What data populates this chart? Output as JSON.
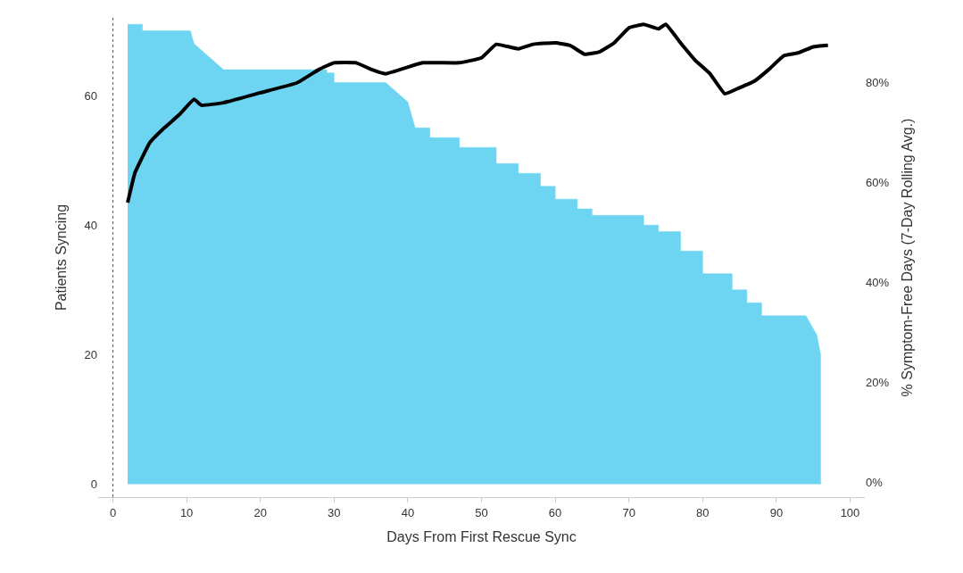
{
  "chart_data": {
    "type": "area",
    "xlabel": "Days From First Rescue Sync",
    "ylabel": "Patients Syncing",
    "y2label": "% Symptom-Free Days (7-Day Rolling Avg.)",
    "xlim": [
      -2,
      102
    ],
    "xticks": [
      0,
      10,
      20,
      30,
      40,
      50,
      60,
      70,
      80,
      90,
      100
    ],
    "ylim": [
      -2,
      72
    ],
    "yticks": [
      0,
      20,
      40,
      60
    ],
    "y2lim": [
      -3,
      93
    ],
    "y2ticks": [
      {
        "value": 0,
        "label": "0%"
      },
      {
        "value": 20,
        "label": "20%"
      },
      {
        "value": 40,
        "label": "40%"
      },
      {
        "value": 60,
        "label": "60%"
      },
      {
        "value": 80,
        "label": "80%"
      }
    ],
    "ref_lines": [
      {
        "axis": "x",
        "value": 0,
        "color": "#555555",
        "line_style": "dotted"
      }
    ],
    "series": [
      {
        "color": "#6dd5f2",
        "x": [
          2,
          4,
          4,
          10.5,
          11,
          13,
          15,
          29,
          29,
          30,
          30,
          37,
          38,
          40,
          41,
          43,
          43,
          47,
          47,
          52,
          52,
          55,
          55,
          58,
          58,
          60,
          60,
          63,
          63,
          65,
          65,
          72,
          72,
          74,
          74,
          77,
          77,
          80,
          80,
          84,
          84,
          86,
          86,
          88,
          88,
          92,
          94,
          95.5,
          96,
          96
        ],
        "values": [
          71,
          71,
          70,
          70,
          68,
          66,
          64,
          64,
          63.5,
          63.5,
          62,
          62,
          61,
          59,
          55,
          55,
          53.5,
          53.5,
          52,
          52,
          49.5,
          49.5,
          48,
          48,
          46,
          46,
          44,
          44,
          42.5,
          42.5,
          41.5,
          41.5,
          40,
          40,
          39,
          39,
          36,
          36,
          32.5,
          32.5,
          30,
          30,
          28,
          28,
          26,
          26,
          26,
          23,
          20,
          0
        ]
      },
      {
        "type": "line",
        "axis": "y2",
        "color": "#000000",
        "x": [
          2,
          3,
          5,
          7,
          9,
          11,
          12,
          15,
          20,
          25,
          28,
          30,
          33,
          35,
          37,
          42,
          47,
          50,
          52,
          55,
          57,
          60,
          62,
          64,
          66,
          68,
          70,
          72,
          74,
          75,
          77,
          79,
          81,
          83,
          85,
          87,
          89,
          91,
          93,
          95,
          97
        ],
        "values": [
          56,
          62,
          68,
          71,
          73.6,
          76.7,
          75.5,
          76,
          78,
          80,
          82.7,
          84,
          84,
          82.7,
          81.8,
          84,
          84,
          85,
          87.7,
          86.8,
          87.7,
          88,
          87.5,
          85.7,
          86.2,
          88,
          91,
          91.7,
          90.8,
          91.7,
          88,
          84.5,
          81.8,
          77.8,
          79,
          80.3,
          82.7,
          85.4,
          86,
          87.2,
          87.5
        ]
      }
    ]
  }
}
